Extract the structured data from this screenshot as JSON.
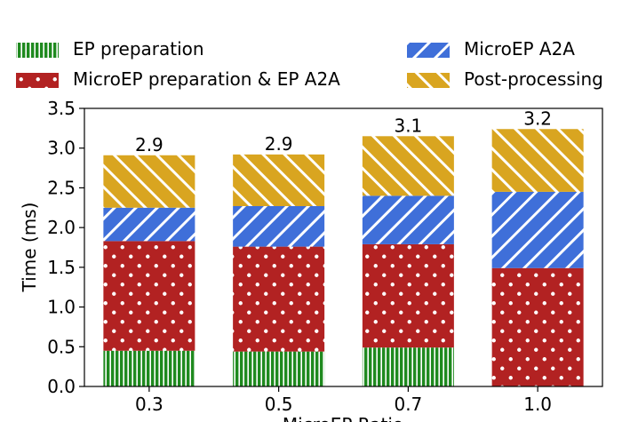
{
  "chart_data": {
    "type": "bar",
    "stacked": true,
    "categories": [
      "0.3",
      "0.5",
      "0.7",
      "1.0"
    ],
    "series": [
      {
        "name": "EP preparation",
        "values": [
          0.45,
          0.44,
          0.49,
          0.0
        ],
        "color": "#1f8a1f",
        "pattern": "vertical-stripes"
      },
      {
        "name": "MicroEP preparation & EP A2A",
        "values": [
          1.38,
          1.32,
          1.3,
          1.49
        ],
        "color": "#b22222",
        "pattern": "dots"
      },
      {
        "name": "MicroEP A2A",
        "values": [
          0.42,
          0.51,
          0.61,
          0.96
        ],
        "color": "#3f6fd9",
        "pattern": "diagonal-stripes"
      },
      {
        "name": "Post-processing",
        "values": [
          0.66,
          0.65,
          0.75,
          0.79
        ],
        "color": "#d9a520",
        "pattern": "diagonal-stripes"
      }
    ],
    "totals_labels": [
      "2.9",
      "2.9",
      "3.1",
      "3.2"
    ],
    "totals": [
      2.91,
      2.92,
      3.15,
      3.24
    ],
    "title": "",
    "xlabel": "MicroEP Ratio",
    "ylabel": "Time (ms)",
    "ylim": [
      0,
      3.5
    ],
    "yticks": [
      "0.0",
      "0.5",
      "1.0",
      "1.5",
      "2.0",
      "2.5",
      "3.0",
      "3.5"
    ],
    "legend_position": "top"
  }
}
